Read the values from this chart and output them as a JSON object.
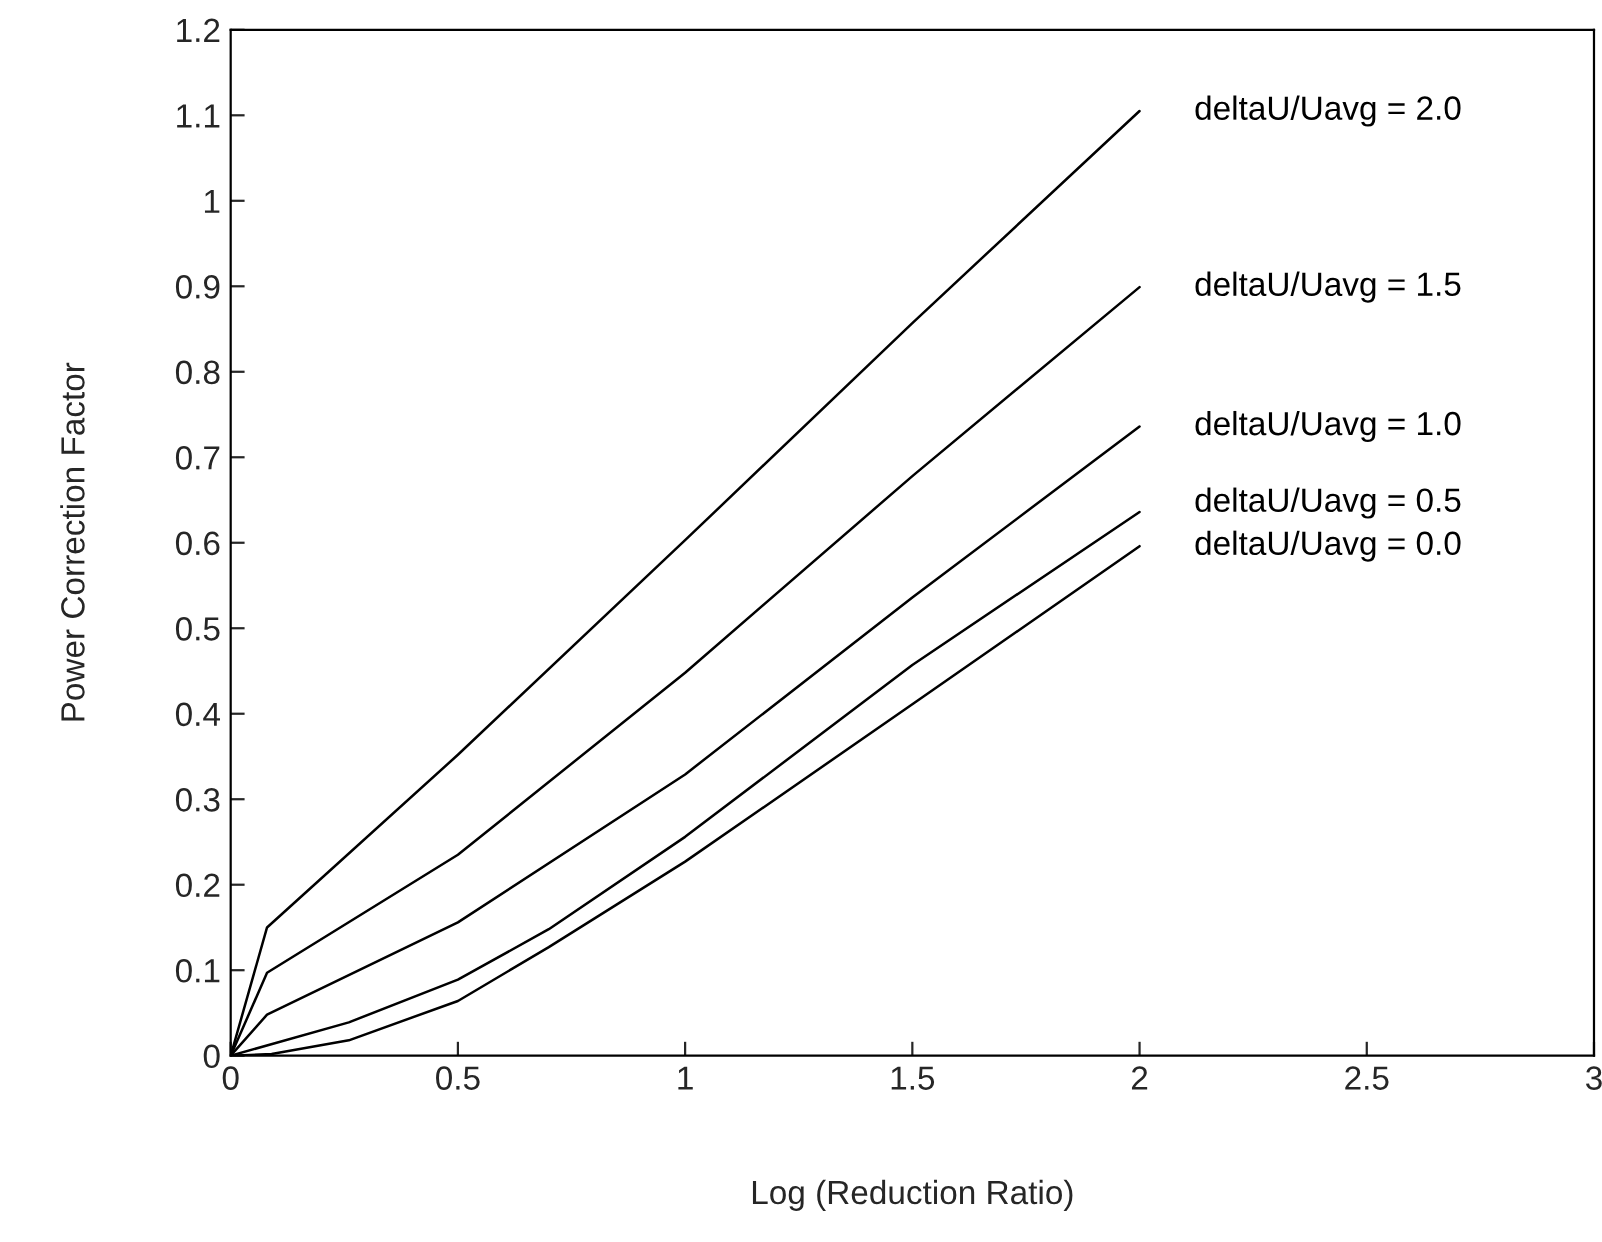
{
  "chart_data": {
    "type": "line",
    "xlabel": "Log (Reduction Ratio)",
    "ylabel": "Power Correction Factor",
    "series": [
      {
        "name": "deltaU/Uavg = 2.0",
        "color": "#000000",
        "x": [
          0,
          0.08,
          0.5,
          1,
          1.5,
          2
        ],
        "values": [
          0,
          0.15,
          0.352,
          0.603,
          0.857,
          1.105
        ]
      },
      {
        "name": "deltaU/Uavg = 1.5",
        "color": "#000000",
        "x": [
          0,
          0.08,
          0.5,
          1,
          1.5,
          2
        ],
        "values": [
          0,
          0.097,
          0.235,
          0.448,
          0.678,
          0.899
        ]
      },
      {
        "name": "deltaU/Uavg = 1.0",
        "color": "#000000",
        "x": [
          0,
          0.08,
          0.5,
          1,
          1.5,
          2
        ],
        "values": [
          0,
          0.048,
          0.156,
          0.329,
          0.536,
          0.736
        ]
      },
      {
        "name": "deltaU/Uavg = 0.5",
        "color": "#000000",
        "x": [
          0,
          0.26,
          0.5,
          0.7,
          1,
          1.5,
          2
        ],
        "values": [
          0,
          0.039,
          0.089,
          0.148,
          0.256,
          0.457,
          0.636
        ]
      },
      {
        "name": "deltaU/Uavg = 0.0",
        "color": "#000000",
        "x": [
          0,
          0.09,
          0.26,
          0.5,
          0.7,
          1,
          1.5,
          2
        ],
        "values": [
          0,
          0.002,
          0.018,
          0.064,
          0.127,
          0.227,
          0.411,
          0.596
        ]
      }
    ],
    "xlim": [
      0,
      3
    ],
    "ylim": [
      0,
      1.2
    ],
    "xticks": [
      0,
      0.5,
      1,
      1.5,
      2,
      2.5,
      3
    ],
    "yticks": [
      0,
      0.1,
      0.2,
      0.3,
      0.4,
      0.5,
      0.6,
      0.7,
      0.8,
      0.9,
      1,
      1.1,
      1.2
    ],
    "grid": false,
    "legend": false,
    "marker": "none",
    "line_style": "solid"
  }
}
